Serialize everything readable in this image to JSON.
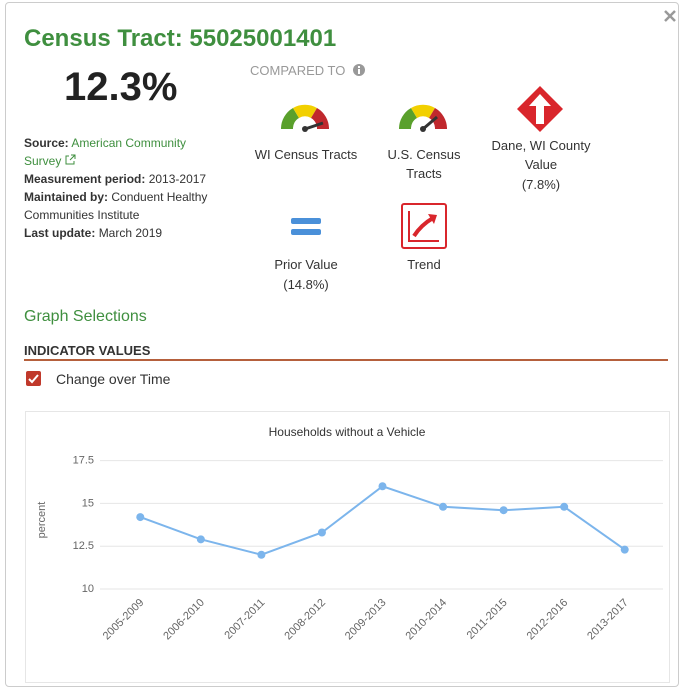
{
  "header": {
    "title": "Census Tract: 55025001401",
    "value": "12.3%"
  },
  "details": [
    {
      "label": "Source:",
      "value": "American Community Survey"
    },
    {
      "label": "Measurement period:",
      "value": "2013-2017"
    },
    {
      "label": "Maintained by:",
      "value": "Conduent Healthy Communities Institute"
    },
    {
      "label": "Last update:",
      "value": "March 2019"
    }
  ],
  "comparisons": {
    "heading": "COMPARED TO",
    "items": [
      {
        "label": "WI Census Tracts"
      },
      {
        "label": "U.S. Census Tracts"
      },
      {
        "label": "Dane, WI County Value",
        "value": "(7.8%)"
      },
      {
        "label": "Prior Value",
        "value": "(14.8%)"
      },
      {
        "label": "Trend"
      }
    ]
  },
  "graph_selections": "Graph Selections",
  "section": "INDICATOR VALUES",
  "checkbox": "Change over Time",
  "chart_data": {
    "type": "line",
    "title": "Households without a Vehicle",
    "y_label": "percent",
    "categories": [
      "2005-2009",
      "2006-2010",
      "2007-2011",
      "2008-2012",
      "2009-2013",
      "2010-2014",
      "2011-2015",
      "2012-2016",
      "2013-2017"
    ],
    "values": [
      14.2,
      12.9,
      12.0,
      13.3,
      16.0,
      14.8,
      14.6,
      14.8,
      12.3
    ],
    "color": "#7cb5ec",
    "ylim": [
      10,
      18
    ],
    "yticks": [
      10,
      12.5,
      15,
      17.5
    ],
    "grid": true
  }
}
